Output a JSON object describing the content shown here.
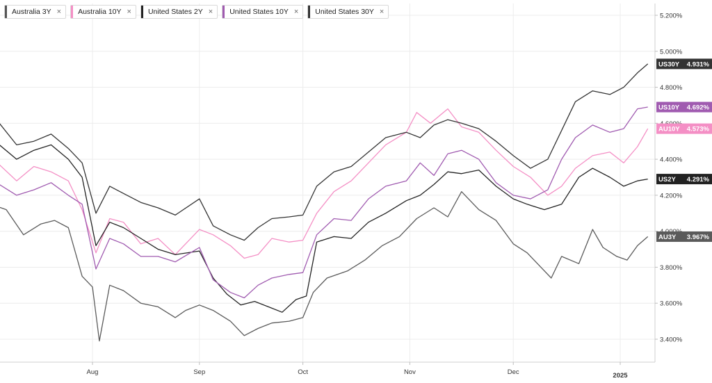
{
  "legend": [
    {
      "label": "Australia 3Y",
      "color": "#555555"
    },
    {
      "label": "Australia 10Y",
      "color": "#f48fc5"
    },
    {
      "label": "United States 2Y",
      "color": "#222222"
    },
    {
      "label": "United States 10Y",
      "color": "#a05bb0"
    },
    {
      "label": "United States 30Y",
      "color": "#333333"
    }
  ],
  "close_glyph": "×",
  "chart_data": {
    "type": "line",
    "title": "",
    "xlabel": "",
    "ylabel": "",
    "ylim": [
      3.25,
      5.25
    ],
    "y_ticks": [
      "5.200%",
      "5.000%",
      "4.800%",
      "4.600%",
      "4.400%",
      "4.200%",
      "4.000%",
      "3.800%",
      "3.600%",
      "3.400%"
    ],
    "y_tick_values": [
      5.2,
      5.0,
      4.8,
      4.6,
      4.4,
      4.2,
      4.0,
      3.8,
      3.6,
      3.4
    ],
    "x_ticks": [
      {
        "label": "Aug",
        "date": "2024-08-01"
      },
      {
        "label": "Sep",
        "date": "2024-09-01"
      },
      {
        "label": "Oct",
        "date": "2024-10-01"
      },
      {
        "label": "Nov",
        "date": "2024-11-01"
      },
      {
        "label": "Dec",
        "date": "2024-12-01"
      },
      {
        "label": "2025",
        "date": "2025-01-01"
      }
    ],
    "x_range": [
      "2024-07-01",
      "2025-01-09"
    ],
    "grid": true,
    "series": [
      {
        "name": "Australia 3Y",
        "tag": "AU3Y",
        "last_label": "3.967%",
        "color": "#5a5a5a",
        "points": [
          [
            "2024-07-01",
            4.16
          ],
          [
            "2024-07-07",
            4.12
          ],
          [
            "2024-07-12",
            3.98
          ],
          [
            "2024-07-17",
            4.04
          ],
          [
            "2024-07-21",
            4.06
          ],
          [
            "2024-07-25",
            4.02
          ],
          [
            "2024-07-29",
            3.75
          ],
          [
            "2024-08-01",
            3.69
          ],
          [
            "2024-08-03",
            3.39
          ],
          [
            "2024-08-06",
            3.7
          ],
          [
            "2024-08-10",
            3.67
          ],
          [
            "2024-08-15",
            3.6
          ],
          [
            "2024-08-20",
            3.58
          ],
          [
            "2024-08-25",
            3.52
          ],
          [
            "2024-08-28",
            3.56
          ],
          [
            "2024-09-01",
            3.59
          ],
          [
            "2024-09-05",
            3.56
          ],
          [
            "2024-09-10",
            3.5
          ],
          [
            "2024-09-14",
            3.42
          ],
          [
            "2024-09-18",
            3.46
          ],
          [
            "2024-09-22",
            3.49
          ],
          [
            "2024-09-27",
            3.5
          ],
          [
            "2024-10-01",
            3.52
          ],
          [
            "2024-10-04",
            3.66
          ],
          [
            "2024-10-08",
            3.74
          ],
          [
            "2024-10-14",
            3.78
          ],
          [
            "2024-10-19",
            3.84
          ],
          [
            "2024-10-24",
            3.92
          ],
          [
            "2024-10-29",
            3.97
          ],
          [
            "2024-11-03",
            4.07
          ],
          [
            "2024-11-08",
            4.13
          ],
          [
            "2024-11-12",
            4.08
          ],
          [
            "2024-11-16",
            4.22
          ],
          [
            "2024-11-21",
            4.12
          ],
          [
            "2024-11-26",
            4.06
          ],
          [
            "2024-12-01",
            3.93
          ],
          [
            "2024-12-05",
            3.88
          ],
          [
            "2024-12-09",
            3.8
          ],
          [
            "2024-12-12",
            3.74
          ],
          [
            "2024-12-15",
            3.86
          ],
          [
            "2024-12-20",
            3.82
          ],
          [
            "2024-12-24",
            4.01
          ],
          [
            "2024-12-27",
            3.91
          ],
          [
            "2024-12-31",
            3.86
          ],
          [
            "2025-01-03",
            3.84
          ],
          [
            "2025-01-06",
            3.92
          ],
          [
            "2025-01-09",
            3.97
          ]
        ]
      },
      {
        "name": "Australia 10Y",
        "tag": "AU10Y",
        "last_label": "4.573%",
        "color": "#f48fc5",
        "points": [
          [
            "2024-07-01",
            4.41
          ],
          [
            "2024-07-05",
            4.37
          ],
          [
            "2024-07-10",
            4.28
          ],
          [
            "2024-07-15",
            4.36
          ],
          [
            "2024-07-20",
            4.33
          ],
          [
            "2024-07-25",
            4.28
          ],
          [
            "2024-07-29",
            4.12
          ],
          [
            "2024-08-02",
            3.88
          ],
          [
            "2024-08-06",
            4.07
          ],
          [
            "2024-08-10",
            4.05
          ],
          [
            "2024-08-15",
            3.93
          ],
          [
            "2024-08-20",
            3.96
          ],
          [
            "2024-08-25",
            3.87
          ],
          [
            "2024-09-01",
            4.01
          ],
          [
            "2024-09-05",
            3.98
          ],
          [
            "2024-09-10",
            3.92
          ],
          [
            "2024-09-14",
            3.85
          ],
          [
            "2024-09-18",
            3.87
          ],
          [
            "2024-09-22",
            3.96
          ],
          [
            "2024-09-27",
            3.94
          ],
          [
            "2024-10-01",
            3.95
          ],
          [
            "2024-10-05",
            4.1
          ],
          [
            "2024-10-10",
            4.22
          ],
          [
            "2024-10-15",
            4.28
          ],
          [
            "2024-10-20",
            4.38
          ],
          [
            "2024-10-25",
            4.48
          ],
          [
            "2024-10-31",
            4.55
          ],
          [
            "2024-11-03",
            4.66
          ],
          [
            "2024-11-07",
            4.6
          ],
          [
            "2024-11-12",
            4.68
          ],
          [
            "2024-11-16",
            4.58
          ],
          [
            "2024-11-21",
            4.55
          ],
          [
            "2024-11-26",
            4.45
          ],
          [
            "2024-12-01",
            4.36
          ],
          [
            "2024-12-06",
            4.3
          ],
          [
            "2024-12-11",
            4.2
          ],
          [
            "2024-12-15",
            4.25
          ],
          [
            "2024-12-19",
            4.35
          ],
          [
            "2024-12-24",
            4.42
          ],
          [
            "2024-12-29",
            4.44
          ],
          [
            "2025-01-02",
            4.38
          ],
          [
            "2025-01-06",
            4.47
          ],
          [
            "2025-01-09",
            4.57
          ]
        ]
      },
      {
        "name": "United States 2Y",
        "tag": "US2Y",
        "last_label": "4.291%",
        "color": "#222222",
        "points": [
          [
            "2024-07-01",
            4.52
          ],
          [
            "2024-07-05",
            4.48
          ],
          [
            "2024-07-10",
            4.4
          ],
          [
            "2024-07-15",
            4.45
          ],
          [
            "2024-07-20",
            4.48
          ],
          [
            "2024-07-25",
            4.4
          ],
          [
            "2024-07-29",
            4.3
          ],
          [
            "2024-08-02",
            3.92
          ],
          [
            "2024-08-06",
            4.05
          ],
          [
            "2024-08-10",
            4.02
          ],
          [
            "2024-08-15",
            3.96
          ],
          [
            "2024-08-20",
            3.9
          ],
          [
            "2024-08-25",
            3.87
          ],
          [
            "2024-09-01",
            3.89
          ],
          [
            "2024-09-05",
            3.74
          ],
          [
            "2024-09-09",
            3.65
          ],
          [
            "2024-09-13",
            3.59
          ],
          [
            "2024-09-17",
            3.61
          ],
          [
            "2024-09-21",
            3.58
          ],
          [
            "2024-09-25",
            3.55
          ],
          [
            "2024-09-29",
            3.62
          ],
          [
            "2024-10-02",
            3.64
          ],
          [
            "2024-10-05",
            3.94
          ],
          [
            "2024-10-10",
            3.97
          ],
          [
            "2024-10-15",
            3.96
          ],
          [
            "2024-10-20",
            4.05
          ],
          [
            "2024-10-25",
            4.1
          ],
          [
            "2024-10-31",
            4.17
          ],
          [
            "2024-11-04",
            4.2
          ],
          [
            "2024-11-08",
            4.26
          ],
          [
            "2024-11-12",
            4.33
          ],
          [
            "2024-11-16",
            4.32
          ],
          [
            "2024-11-21",
            4.34
          ],
          [
            "2024-11-26",
            4.25
          ],
          [
            "2024-12-01",
            4.18
          ],
          [
            "2024-12-05",
            4.15
          ],
          [
            "2024-12-10",
            4.12
          ],
          [
            "2024-12-15",
            4.15
          ],
          [
            "2024-12-20",
            4.3
          ],
          [
            "2024-12-24",
            4.35
          ],
          [
            "2024-12-29",
            4.3
          ],
          [
            "2025-01-02",
            4.25
          ],
          [
            "2025-01-06",
            4.28
          ],
          [
            "2025-01-09",
            4.29
          ]
        ]
      },
      {
        "name": "United States 10Y",
        "tag": "US10Y",
        "last_label": "4.692%",
        "color": "#a05bb0",
        "points": [
          [
            "2024-07-01",
            4.28
          ],
          [
            "2024-07-05",
            4.26
          ],
          [
            "2024-07-10",
            4.2
          ],
          [
            "2024-07-15",
            4.23
          ],
          [
            "2024-07-20",
            4.27
          ],
          [
            "2024-07-25",
            4.2
          ],
          [
            "2024-07-29",
            4.15
          ],
          [
            "2024-08-02",
            3.79
          ],
          [
            "2024-08-06",
            3.96
          ],
          [
            "2024-08-10",
            3.93
          ],
          [
            "2024-08-15",
            3.86
          ],
          [
            "2024-08-20",
            3.86
          ],
          [
            "2024-08-25",
            3.83
          ],
          [
            "2024-09-01",
            3.91
          ],
          [
            "2024-09-05",
            3.73
          ],
          [
            "2024-09-10",
            3.66
          ],
          [
            "2024-09-14",
            3.63
          ],
          [
            "2024-09-18",
            3.7
          ],
          [
            "2024-09-22",
            3.74
          ],
          [
            "2024-09-27",
            3.76
          ],
          [
            "2024-10-01",
            3.77
          ],
          [
            "2024-10-05",
            3.98
          ],
          [
            "2024-10-10",
            4.07
          ],
          [
            "2024-10-15",
            4.06
          ],
          [
            "2024-10-20",
            4.18
          ],
          [
            "2024-10-25",
            4.25
          ],
          [
            "2024-10-31",
            4.28
          ],
          [
            "2024-11-04",
            4.38
          ],
          [
            "2024-11-08",
            4.31
          ],
          [
            "2024-11-12",
            4.43
          ],
          [
            "2024-11-16",
            4.45
          ],
          [
            "2024-11-21",
            4.4
          ],
          [
            "2024-11-26",
            4.27
          ],
          [
            "2024-12-01",
            4.2
          ],
          [
            "2024-12-06",
            4.18
          ],
          [
            "2024-12-11",
            4.23
          ],
          [
            "2024-12-15",
            4.4
          ],
          [
            "2024-12-19",
            4.52
          ],
          [
            "2024-12-24",
            4.59
          ],
          [
            "2024-12-29",
            4.55
          ],
          [
            "2025-01-02",
            4.57
          ],
          [
            "2025-01-06",
            4.68
          ],
          [
            "2025-01-09",
            4.69
          ]
        ]
      },
      {
        "name": "United States 30Y",
        "tag": "US30Y",
        "last_label": "4.931%",
        "color": "#333333",
        "points": [
          [
            "2024-07-01",
            4.62
          ],
          [
            "2024-07-05",
            4.6
          ],
          [
            "2024-07-10",
            4.48
          ],
          [
            "2024-07-15",
            4.5
          ],
          [
            "2024-07-20",
            4.54
          ],
          [
            "2024-07-25",
            4.46
          ],
          [
            "2024-07-29",
            4.38
          ],
          [
            "2024-08-02",
            4.1
          ],
          [
            "2024-08-06",
            4.25
          ],
          [
            "2024-08-10",
            4.21
          ],
          [
            "2024-08-15",
            4.16
          ],
          [
            "2024-08-20",
            4.13
          ],
          [
            "2024-08-25",
            4.09
          ],
          [
            "2024-09-01",
            4.18
          ],
          [
            "2024-09-05",
            4.03
          ],
          [
            "2024-09-10",
            3.98
          ],
          [
            "2024-09-14",
            3.95
          ],
          [
            "2024-09-18",
            4.02
          ],
          [
            "2024-09-22",
            4.07
          ],
          [
            "2024-09-27",
            4.08
          ],
          [
            "2024-10-01",
            4.09
          ],
          [
            "2024-10-05",
            4.25
          ],
          [
            "2024-10-10",
            4.33
          ],
          [
            "2024-10-15",
            4.36
          ],
          [
            "2024-10-20",
            4.44
          ],
          [
            "2024-10-25",
            4.52
          ],
          [
            "2024-10-31",
            4.55
          ],
          [
            "2024-11-04",
            4.52
          ],
          [
            "2024-11-08",
            4.59
          ],
          [
            "2024-11-12",
            4.62
          ],
          [
            "2024-11-16",
            4.6
          ],
          [
            "2024-11-21",
            4.57
          ],
          [
            "2024-11-26",
            4.5
          ],
          [
            "2024-12-01",
            4.42
          ],
          [
            "2024-12-06",
            4.35
          ],
          [
            "2024-12-11",
            4.4
          ],
          [
            "2024-12-15",
            4.56
          ],
          [
            "2024-12-19",
            4.72
          ],
          [
            "2024-12-24",
            4.78
          ],
          [
            "2024-12-29",
            4.76
          ],
          [
            "2025-01-02",
            4.8
          ],
          [
            "2025-01-06",
            4.88
          ],
          [
            "2025-01-09",
            4.93
          ]
        ]
      }
    ]
  }
}
